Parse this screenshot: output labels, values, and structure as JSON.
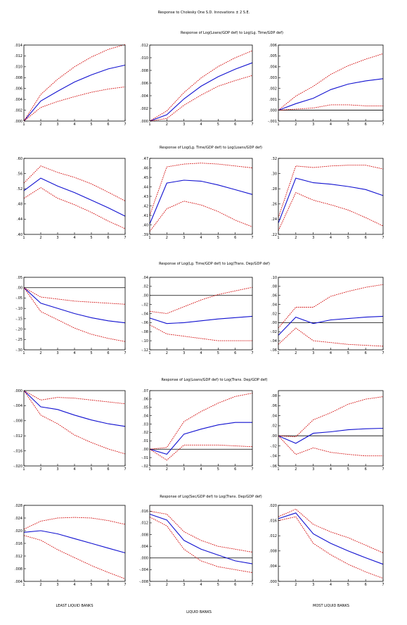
{
  "figure_title": "Response to Cholesky One S.D. Innovations ± 2 S.E.",
  "row_titles": [
    "Response of Log(Loans/GDP def) to Log(Lg. Time/GDP def)",
    "Response of Log(Lg. Time/GDP def) to Log(Loans/GDP def)",
    "Response of Log(Lg. Time/GDP def) to Log(Trans. Dep/GDP def)",
    "Response of Log(Loans/GDP def) to Log(Trans. Dep/GDP def)",
    "Response of Log(Sec/GDP def) to Log(Trans. Dep/GDP def)"
  ],
  "column_labels": [
    "LEAST LIQUID BANKS",
    "LIQUID BANKS",
    "MOST LIQUID BANKS"
  ],
  "colors": {
    "response": "#1010d0",
    "bands": "#d00000",
    "zero_line": "#000000",
    "frame": "#000000"
  },
  "chart_data": [
    {
      "type": "line",
      "row": 0,
      "col": 0,
      "x": [
        1,
        2,
        3,
        4,
        5,
        6,
        7
      ],
      "xticks": [
        "1",
        "2",
        "3",
        "4",
        "5",
        "6",
        "7"
      ],
      "ylim": [
        0.0,
        0.014
      ],
      "yticks": [
        ".014",
        ".012",
        ".010",
        ".008",
        ".006",
        ".004",
        ".002",
        ".000"
      ],
      "series": [
        {
          "values": [
            0.0,
            0.0037,
            0.0055,
            0.0072,
            0.0085,
            0.0096,
            0.0103
          ]
        },
        {
          "values": [
            0.0,
            0.0049,
            0.0077,
            0.01,
            0.0118,
            0.0132,
            0.0141
          ]
        },
        {
          "values": [
            0.0,
            0.0025,
            0.0036,
            0.0045,
            0.0053,
            0.0059,
            0.0063
          ]
        }
      ]
    },
    {
      "type": "line",
      "row": 0,
      "col": 1,
      "x": [
        1,
        2,
        3,
        4,
        5,
        6,
        7
      ],
      "xticks": [
        "1",
        "2",
        "3",
        "4",
        "5",
        "6",
        "7"
      ],
      "ylim": [
        0.0,
        0.012
      ],
      "yticks": [
        ".012",
        ".010",
        ".008",
        ".006",
        ".004",
        ".002",
        ".000"
      ],
      "series": [
        {
          "values": [
            0.0,
            0.001,
            0.0035,
            0.0055,
            0.007,
            0.0082,
            0.0092
          ]
        },
        {
          "values": [
            0.0,
            0.0016,
            0.0045,
            0.0068,
            0.0086,
            0.01,
            0.0111
          ]
        },
        {
          "values": [
            0.0,
            0.0004,
            0.0025,
            0.0041,
            0.0055,
            0.0064,
            0.0072
          ]
        }
      ]
    },
    {
      "type": "line",
      "row": 0,
      "col": 2,
      "x": [
        1,
        2,
        3,
        4,
        5,
        6,
        7
      ],
      "xticks": [
        "1",
        "2",
        "3",
        "4",
        "5",
        "6",
        "7"
      ],
      "ylim": [
        -0.001,
        0.006
      ],
      "yticks": [
        ".006",
        ".005",
        ".004",
        ".003",
        ".002",
        ".001",
        ".000",
        "-.001"
      ],
      "series": [
        {
          "values": [
            0.0,
            0.0006,
            0.0011,
            0.0019,
            0.0024,
            0.0027,
            0.0029
          ]
        },
        {
          "values": [
            0.0,
            0.0013,
            0.0022,
            0.0033,
            0.0041,
            0.0047,
            0.0052
          ]
        },
        {
          "values": [
            0.0,
            0.0001,
            0.0002,
            0.0005,
            0.0005,
            0.0004,
            0.0004
          ]
        }
      ]
    },
    {
      "type": "line",
      "row": 1,
      "col": 0,
      "x": [
        1,
        2,
        3,
        4,
        5,
        6,
        7
      ],
      "xticks": [
        "1",
        "2",
        "3",
        "4",
        "5",
        "6",
        "7"
      ],
      "ylim": [
        0.4,
        0.6
      ],
      "yticks": [
        ".60",
        ".56",
        ".52",
        ".48",
        ".44",
        ".40"
      ],
      "series": [
        {
          "values": [
            0.515,
            0.548,
            0.527,
            0.51,
            0.49,
            0.47,
            0.448
          ]
        },
        {
          "values": [
            0.535,
            0.58,
            0.563,
            0.55,
            0.533,
            0.511,
            0.488
          ]
        },
        {
          "values": [
            0.495,
            0.523,
            0.495,
            0.478,
            0.458,
            0.435,
            0.415
          ]
        }
      ]
    },
    {
      "type": "line",
      "row": 1,
      "col": 1,
      "x": [
        1,
        2,
        3,
        4,
        5,
        6,
        7
      ],
      "xticks": [
        "1",
        "2",
        "3",
        "4",
        "5",
        "6",
        "7"
      ],
      "ylim": [
        0.39,
        0.47
      ],
      "yticks": [
        ".47",
        ".46",
        ".45",
        ".44",
        ".43",
        ".42",
        ".41",
        ".40",
        ".39"
      ],
      "series": [
        {
          "values": [
            0.401,
            0.444,
            0.447,
            0.446,
            0.442,
            0.437,
            0.432
          ]
        },
        {
          "values": [
            0.41,
            0.461,
            0.464,
            0.465,
            0.464,
            0.462,
            0.46
          ]
        },
        {
          "values": [
            0.393,
            0.417,
            0.425,
            0.421,
            0.414,
            0.405,
            0.398
          ]
        }
      ]
    },
    {
      "type": "line",
      "row": 1,
      "col": 2,
      "x": [
        1,
        2,
        3,
        4,
        5,
        6,
        7
      ],
      "xticks": [
        "1",
        "2",
        "3",
        "4",
        "5",
        "6",
        "7"
      ],
      "ylim": [
        0.22,
        0.32
      ],
      "yticks": [
        ".32",
        ".30",
        ".28",
        ".26",
        ".24",
        ".22"
      ],
      "series": [
        {
          "values": [
            0.235,
            0.294,
            0.288,
            0.286,
            0.283,
            0.279,
            0.271
          ]
        },
        {
          "values": [
            0.242,
            0.31,
            0.308,
            0.31,
            0.311,
            0.311,
            0.306
          ]
        },
        {
          "values": [
            0.225,
            0.275,
            0.265,
            0.259,
            0.252,
            0.242,
            0.231
          ]
        }
      ]
    },
    {
      "type": "line",
      "row": 2,
      "col": 0,
      "x": [
        1,
        2,
        3,
        4,
        5,
        6,
        7
      ],
      "xticks": [
        "1",
        "2",
        "3",
        "4",
        "5",
        "6",
        "7"
      ],
      "ylim": [
        -0.3,
        0.05
      ],
      "yticks": [
        ".05",
        ".00",
        "-.05",
        "-.10",
        "-.15",
        "-.20",
        "-.25",
        "-.30"
      ],
      "series": [
        {
          "values": [
            0.0,
            -0.075,
            -0.1,
            -0.125,
            -0.145,
            -0.16,
            -0.17
          ]
        },
        {
          "values": [
            0.0,
            -0.045,
            -0.055,
            -0.065,
            -0.07,
            -0.075,
            -0.08
          ]
        },
        {
          "values": [
            0.0,
            -0.115,
            -0.155,
            -0.195,
            -0.225,
            -0.245,
            -0.26
          ]
        }
      ]
    },
    {
      "type": "line",
      "row": 2,
      "col": 1,
      "x": [
        1,
        2,
        3,
        4,
        5,
        6,
        7
      ],
      "xticks": [
        "1",
        "2",
        "3",
        "4",
        "5",
        "6",
        "7"
      ],
      "ylim": [
        -0.12,
        0.04
      ],
      "yticks": [
        ".04",
        ".02",
        ".00",
        "-.02",
        "-.04",
        "-.06",
        "-.08",
        "-.10",
        "-.12"
      ],
      "series": [
        {
          "values": [
            -0.05,
            -0.062,
            -0.06,
            -0.056,
            -0.052,
            -0.049,
            -0.046
          ]
        },
        {
          "values": [
            -0.035,
            -0.04,
            -0.025,
            -0.01,
            0.002,
            0.01,
            0.018
          ]
        },
        {
          "values": [
            -0.065,
            -0.085,
            -0.09,
            -0.095,
            -0.1,
            -0.1,
            -0.1
          ]
        }
      ]
    },
    {
      "type": "line",
      "row": 2,
      "col": 2,
      "x": [
        1,
        2,
        3,
        4,
        5,
        6,
        7
      ],
      "xticks": [
        "1",
        "2",
        "3",
        "4",
        "5",
        "6",
        "7"
      ],
      "ylim": [
        -0.06,
        0.1
      ],
      "yticks": [
        ".10",
        ".08",
        ".06",
        ".04",
        ".02",
        ".00",
        "-.02",
        "-.04",
        "-.06"
      ],
      "series": [
        {
          "values": [
            -0.028,
            0.012,
            -0.002,
            0.006,
            0.009,
            0.012,
            0.014
          ]
        },
        {
          "values": [
            -0.012,
            0.034,
            0.034,
            0.058,
            0.069,
            0.078,
            0.084
          ]
        },
        {
          "values": [
            -0.048,
            -0.012,
            -0.04,
            -0.044,
            -0.048,
            -0.05,
            -0.052
          ]
        }
      ]
    },
    {
      "type": "line",
      "row": 3,
      "col": 0,
      "x": [
        1,
        2,
        3,
        4,
        5,
        6,
        7
      ],
      "xticks": [
        "1",
        "2",
        "3",
        "4",
        "5",
        "6",
        "7"
      ],
      "ylim": [
        -0.02,
        0.0
      ],
      "yticks": [
        ".000",
        "-.004",
        "-.008",
        "-.012",
        "-.016",
        "-.020"
      ],
      "series": [
        {
          "values": [
            0.0,
            -0.0043,
            -0.005,
            -0.0065,
            -0.0078,
            -0.0088,
            -0.0095
          ]
        },
        {
          "values": [
            0.0,
            -0.0025,
            -0.0018,
            -0.002,
            -0.0025,
            -0.003,
            -0.0035
          ]
        },
        {
          "values": [
            0.0,
            -0.0065,
            -0.0088,
            -0.0118,
            -0.0138,
            -0.0155,
            -0.0168
          ]
        }
      ]
    },
    {
      "type": "line",
      "row": 3,
      "col": 1,
      "x": [
        1,
        2,
        3,
        4,
        5,
        6,
        7
      ],
      "xticks": [
        "1",
        "2",
        "3",
        "4",
        "5",
        "6",
        "7"
      ],
      "ylim": [
        -0.02,
        0.07
      ],
      "yticks": [
        ".07",
        ".06",
        ".05",
        ".04",
        ".03",
        ".02",
        ".01",
        ".00",
        "-.01",
        "-.02"
      ],
      "series": [
        {
          "values": [
            0.0,
            -0.006,
            0.018,
            0.024,
            0.029,
            0.032,
            0.032
          ]
        },
        {
          "values": [
            0.0,
            0.002,
            0.033,
            0.045,
            0.055,
            0.063,
            0.067
          ]
        },
        {
          "values": [
            0.0,
            -0.013,
            0.005,
            0.005,
            0.005,
            0.004,
            0.003
          ]
        }
      ]
    },
    {
      "type": "line",
      "row": 3,
      "col": 2,
      "x": [
        1,
        2,
        3,
        4,
        5,
        6,
        7
      ],
      "xticks": [
        "1",
        "2",
        "3",
        "4",
        "5",
        "6",
        "7"
      ],
      "ylim": [
        -0.06,
        0.09
      ],
      "yticks": [
        ".08",
        ".06",
        ".04",
        ".02",
        ".00",
        "-.02",
        "-.04",
        "-.06"
      ],
      "series": [
        {
          "values": [
            0.0,
            -0.015,
            0.005,
            0.008,
            0.012,
            0.014,
            0.015
          ]
        },
        {
          "values": [
            0.0,
            -0.002,
            0.032,
            0.046,
            0.063,
            0.073,
            0.078
          ]
        },
        {
          "values": [
            0.0,
            -0.037,
            -0.024,
            -0.033,
            -0.037,
            -0.04,
            -0.04
          ]
        }
      ]
    },
    {
      "type": "line",
      "row": 4,
      "col": 0,
      "x": [
        1,
        2,
        3,
        4,
        5,
        6,
        7
      ],
      "xticks": [
        "1",
        "2",
        "3",
        "4",
        "5",
        "6",
        "7"
      ],
      "ylim": [
        0.004,
        0.028
      ],
      "yticks": [
        ".028",
        ".024",
        ".020",
        ".016",
        ".012",
        ".008",
        ".004"
      ],
      "series": [
        {
          "values": [
            0.0195,
            0.02,
            0.019,
            0.0175,
            0.016,
            0.0145,
            0.013
          ]
        },
        {
          "values": [
            0.0205,
            0.023,
            0.024,
            0.0242,
            0.024,
            0.0232,
            0.022
          ]
        },
        {
          "values": [
            0.0185,
            0.017,
            0.014,
            0.0115,
            0.009,
            0.0068,
            0.0048
          ]
        }
      ]
    },
    {
      "type": "line",
      "row": 4,
      "col": 1,
      "x": [
        1,
        2,
        3,
        4,
        5,
        6,
        7
      ],
      "xticks": [
        "1",
        "2",
        "3",
        "4",
        "5",
        "6",
        "7"
      ],
      "ylim": [
        -0.008,
        0.018
      ],
      "yticks": [
        ".016",
        ".012",
        ".008",
        ".004",
        ".000",
        "-.004",
        "-.008"
      ],
      "series": [
        {
          "values": [
            0.015,
            0.013,
            0.006,
            0.003,
            0.001,
            -0.001,
            -0.002
          ]
        },
        {
          "values": [
            0.016,
            0.015,
            0.009,
            0.006,
            0.004,
            0.003,
            0.002
          ]
        },
        {
          "values": [
            0.014,
            0.011,
            0.003,
            -0.001,
            -0.003,
            -0.004,
            -0.005
          ]
        }
      ]
    },
    {
      "type": "line",
      "row": 4,
      "col": 2,
      "x": [
        1,
        2,
        3,
        4,
        5,
        6,
        7
      ],
      "xticks": [
        "1",
        "2",
        "3",
        "4",
        "5",
        "6",
        "7"
      ],
      "ylim": [
        0.0,
        0.02
      ],
      "yticks": [
        ".020",
        ".016",
        ".012",
        ".008",
        ".004",
        ".000"
      ],
      "series": [
        {
          "values": [
            0.0165,
            0.018,
            0.0125,
            0.01,
            0.008,
            0.0062,
            0.0045
          ]
        },
        {
          "values": [
            0.017,
            0.019,
            0.015,
            0.013,
            0.0115,
            0.0095,
            0.0075
          ]
        },
        {
          "values": [
            0.016,
            0.017,
            0.01,
            0.007,
            0.0045,
            0.0025,
            0.0008
          ]
        }
      ]
    }
  ]
}
